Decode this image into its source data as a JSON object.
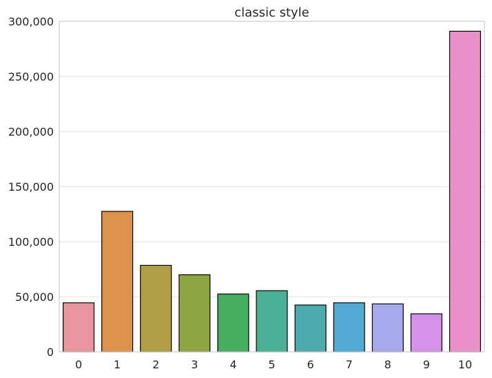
{
  "chart_data": {
    "type": "bar",
    "title": "classic style",
    "xlabel": "",
    "ylabel": "",
    "categories": [
      "0",
      "1",
      "2",
      "3",
      "4",
      "5",
      "6",
      "7",
      "8",
      "9",
      "10"
    ],
    "values": [
      44500,
      127500,
      78500,
      70000,
      52500,
      55500,
      42500,
      44500,
      43500,
      34500,
      291000
    ],
    "colors": [
      "#e9979f",
      "#dd934b",
      "#b09e47",
      "#8ea643",
      "#46af5f",
      "#49af95",
      "#4aaaad",
      "#52aad5",
      "#a6aaeb",
      "#d592e8",
      "#e990c9"
    ],
    "ylim": [
      0,
      300000
    ],
    "y_ticks": [
      0,
      50000,
      100000,
      150000,
      200000,
      250000,
      300000
    ],
    "y_tick_labels": [
      "0",
      "50,000",
      "100,000",
      "150,000",
      "200,000",
      "250,000",
      "300,000"
    ],
    "grid": true,
    "grid_color": "#dcdcdc",
    "frame_color": "#cccccc",
    "bar_edge_color": "#000000"
  }
}
